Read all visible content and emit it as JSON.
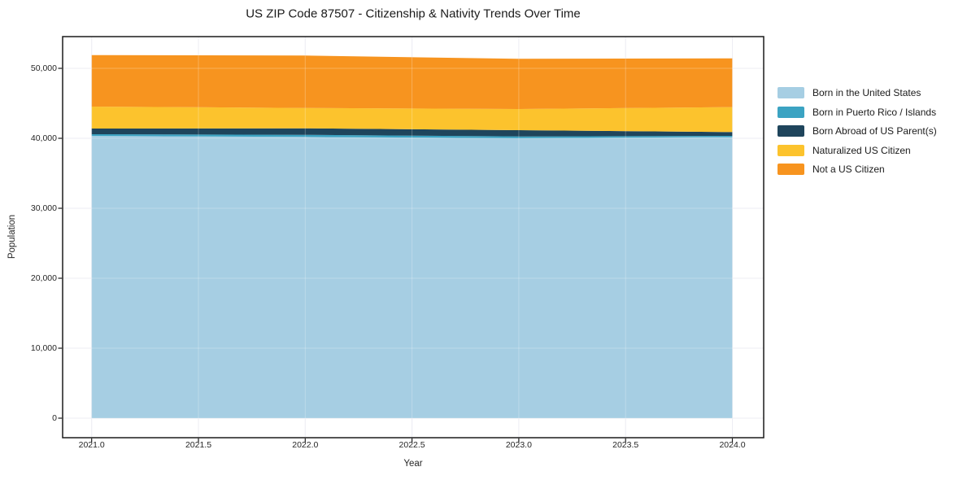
{
  "chart_data": {
    "type": "area",
    "stacked": true,
    "title": "US ZIP Code 87507 - Citizenship & Nativity Trends Over Time",
    "xlabel": "Year",
    "ylabel": "Population",
    "x": [
      2021,
      2022,
      2023,
      2024
    ],
    "series": [
      {
        "name": "Born in the United States",
        "color": "#a6cee3",
        "values": [
          40350,
          40200,
          40000,
          40170
        ]
      },
      {
        "name": "Born in Puerto Rico / Islands",
        "color": "#3ba3c2",
        "values": [
          230,
          300,
          270,
          180
        ]
      },
      {
        "name": "Born Abroad of US Parent(s)",
        "color": "#1f455c",
        "values": [
          820,
          930,
          890,
          550
        ]
      },
      {
        "name": "Naturalized US Citizen",
        "color": "#fcc32d",
        "values": [
          3130,
          2910,
          3030,
          3550
        ]
      },
      {
        "name": "Not a US Citizen",
        "color": "#f7941f",
        "values": [
          7370,
          7490,
          7170,
          6980
        ]
      }
    ],
    "totals": [
      51900,
      51830,
      51360,
      51430
    ],
    "x_ticks": [
      {
        "value": 2021.0,
        "label": "2021.0"
      },
      {
        "value": 2021.5,
        "label": "2021.5"
      },
      {
        "value": 2022.0,
        "label": "2022.0"
      },
      {
        "value": 2022.5,
        "label": "2022.5"
      },
      {
        "value": 2023.0,
        "label": "2023.0"
      },
      {
        "value": 2023.5,
        "label": "2023.5"
      },
      {
        "value": 2024.0,
        "label": "2024.0"
      }
    ],
    "y_ticks": [
      {
        "value": 0,
        "label": "0"
      },
      {
        "value": 10000,
        "label": "10,000"
      },
      {
        "value": 20000,
        "label": "20,000"
      },
      {
        "value": 30000,
        "label": "30,000"
      },
      {
        "value": 40000,
        "label": "40,000"
      },
      {
        "value": 50000,
        "label": "50,000"
      }
    ],
    "xlim": [
      2020.87,
      2024.15
    ],
    "ylim": [
      -2800,
      54500
    ],
    "grid": true,
    "legend_position": "right",
    "colors": {
      "grid": "#e7e7ef",
      "spine": "#1a1a1a",
      "background": "#ffffff"
    }
  }
}
